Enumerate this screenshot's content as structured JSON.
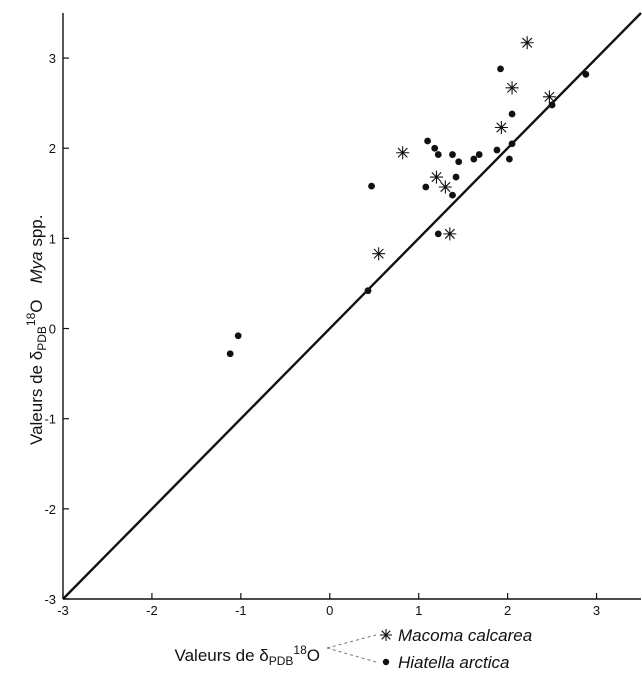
{
  "chart_data": {
    "type": "scatter",
    "xlim": [
      -3,
      3.5
    ],
    "ylim": [
      -3,
      3.5
    ],
    "x_ticks": [
      -3,
      -2,
      -1,
      0,
      1,
      2,
      3
    ],
    "y_ticks": [
      -3,
      -2,
      -1,
      0,
      1,
      2,
      3
    ],
    "x_tick_labels": [
      "-3",
      "-2",
      "-1",
      "0",
      "1",
      "2",
      "3"
    ],
    "y_tick_labels": [
      "-3",
      "-2",
      "-1",
      "0",
      "1",
      "2",
      "3"
    ],
    "grid": false,
    "xlabel": {
      "prefix": "Valeurs de δ",
      "subscript": "PDB",
      "superscript": "18",
      "suffix": "O"
    },
    "ylabel": {
      "prefix": "Valeurs de δ",
      "subscript": "PDB",
      "superscript": "18",
      "suffix": "O",
      "species": "Mya",
      "species_suffix": " spp."
    },
    "reference_line": {
      "from": [
        -3,
        -3
      ],
      "to": [
        3.5,
        3.5
      ]
    },
    "legend_position": "bottom",
    "series": [
      {
        "name": "Macoma calcarea",
        "marker": "asterisk",
        "points": [
          [
            2.22,
            3.17
          ],
          [
            2.05,
            2.67
          ],
          [
            2.47,
            2.57
          ],
          [
            1.93,
            2.23
          ],
          [
            0.82,
            1.95
          ],
          [
            1.2,
            1.68
          ],
          [
            1.3,
            1.57
          ],
          [
            1.35,
            1.05
          ],
          [
            0.55,
            0.83
          ]
        ]
      },
      {
        "name": "Hiatella arctica",
        "marker": "dot",
        "points": [
          [
            2.88,
            2.82
          ],
          [
            1.92,
            2.88
          ],
          [
            2.5,
            2.48
          ],
          [
            2.05,
            2.38
          ],
          [
            1.1,
            2.08
          ],
          [
            1.18,
            2.0
          ],
          [
            1.22,
            1.93
          ],
          [
            1.38,
            1.93
          ],
          [
            1.45,
            1.85
          ],
          [
            1.62,
            1.88
          ],
          [
            1.68,
            1.93
          ],
          [
            1.88,
            1.98
          ],
          [
            2.05,
            2.05
          ],
          [
            2.02,
            1.88
          ],
          [
            1.42,
            1.68
          ],
          [
            1.38,
            1.48
          ],
          [
            1.08,
            1.57
          ],
          [
            0.47,
            1.58
          ],
          [
            1.22,
            1.05
          ],
          [
            0.43,
            0.42
          ],
          [
            -1.12,
            -0.28
          ],
          [
            -1.03,
            -0.08
          ]
        ]
      }
    ]
  }
}
